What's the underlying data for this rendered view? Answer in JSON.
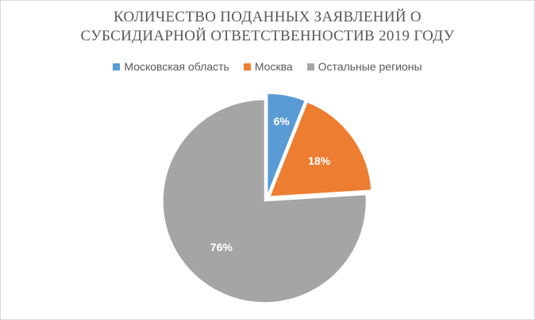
{
  "chart_data": {
    "type": "pie",
    "title_line1": "КОЛИЧЕСТВО ПОДАННЫХ ЗАЯВЛЕНИЙ О",
    "title_line2": "СУБСИДИАРНОЙ ОТВЕТСТВЕННОСТИВ 2019 ГОДУ",
    "categories": [
      "Московская область",
      "Москва",
      "Остальные регионы"
    ],
    "values": [
      6,
      18,
      76
    ],
    "data_labels": [
      "6%",
      "18%",
      "76%"
    ],
    "colors": [
      "#5b9bd5",
      "#ed7d31",
      "#a5a5a5"
    ],
    "exploded": true,
    "legend_position": "top"
  }
}
